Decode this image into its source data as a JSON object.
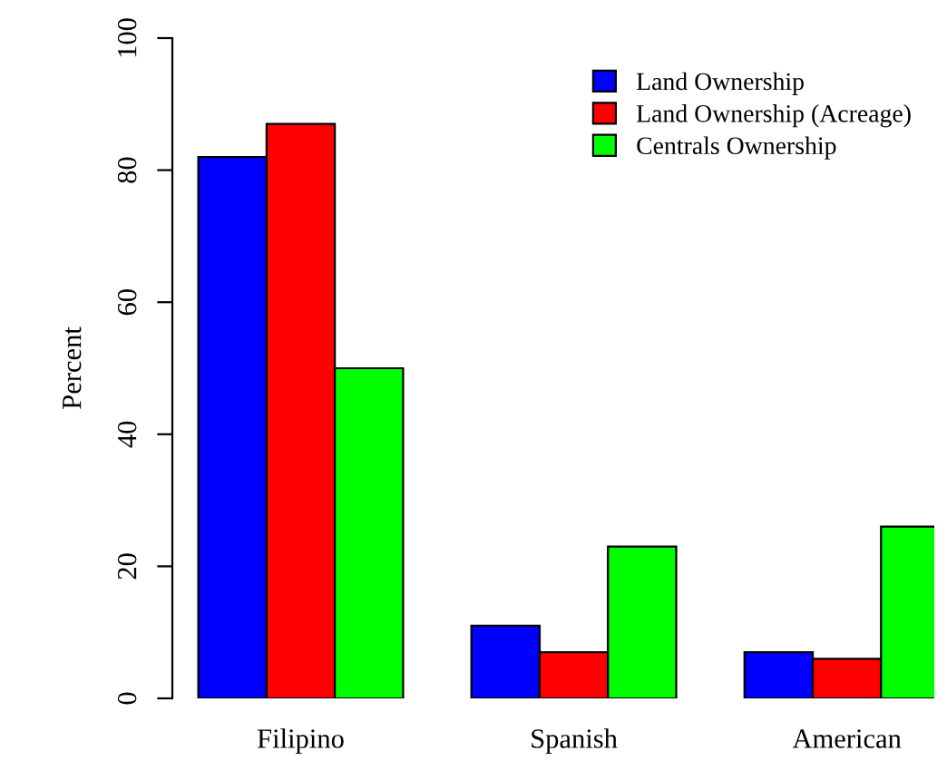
{
  "chart_data": {
    "type": "bar",
    "ylabel": "Percent",
    "categories": [
      "Filipino",
      "Spanish",
      "American"
    ],
    "series": [
      {
        "name": "Land Ownership",
        "color": "#0000ff",
        "values": [
          82,
          11,
          7
        ]
      },
      {
        "name": "Land Ownership (Acreage)",
        "color": "#ff0000",
        "values": [
          87,
          7,
          6
        ]
      },
      {
        "name": "Centrals Ownership",
        "color": "#00ff00",
        "values": [
          50,
          23,
          26
        ]
      }
    ],
    "ylim": [
      0,
      100
    ],
    "yticks": [
      0,
      20,
      40,
      60,
      80,
      100
    ],
    "grid": false,
    "legend": "top right"
  }
}
